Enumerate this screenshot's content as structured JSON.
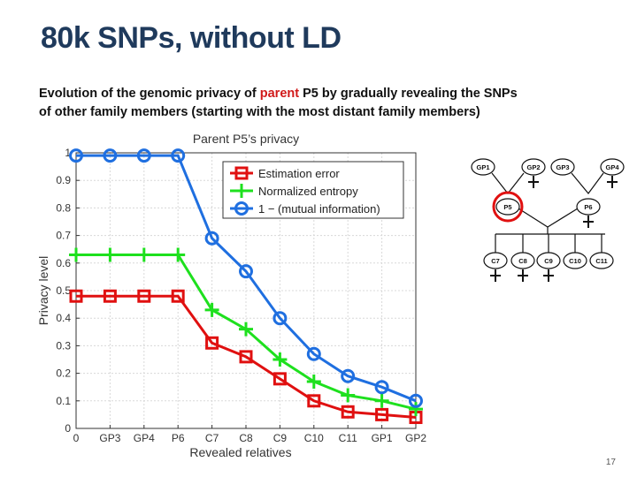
{
  "title": "80k SNPs, without LD",
  "subtitle": {
    "pre": "Evolution of the genomic privacy of ",
    "highlight": "parent",
    "post_line1": " P5 by gradually revealing the SNPs",
    "line2": "of other family members (starting with the most distant family members)"
  },
  "colors": {
    "title": "#1f3a5c",
    "highlight": "#d11a1a",
    "estimation": "#e01010",
    "entropy": "#1ee01e",
    "mutual": "#1f6fe0"
  },
  "chart_data": {
    "type": "line",
    "title": "Parent P5’s privacy",
    "xlabel": "Revealed relatives",
    "ylabel": "Privacy level",
    "categories": [
      "0",
      "GP3",
      "GP4",
      "P6",
      "C7",
      "C8",
      "C9",
      "C10",
      "C11",
      "GP1",
      "GP2"
    ],
    "ylim": [
      0,
      1
    ],
    "yticks": [
      "0",
      "0.1",
      "0.2",
      "0.3",
      "0.4",
      "0.5",
      "0.6",
      "0.7",
      "0.8",
      "0.9",
      "1"
    ],
    "grid": true,
    "legend_position": "top-right",
    "series": [
      {
        "name": "Estimation error",
        "marker": "square",
        "color": "#e01010",
        "values": [
          0.48,
          0.48,
          0.48,
          0.48,
          0.31,
          0.26,
          0.18,
          0.1,
          0.06,
          0.05,
          0.04
        ]
      },
      {
        "name": "Normalized entropy",
        "marker": "plus",
        "color": "#1ee01e",
        "values": [
          0.63,
          0.63,
          0.63,
          0.63,
          0.43,
          0.36,
          0.25,
          0.17,
          0.12,
          0.1,
          0.07
        ]
      },
      {
        "name": "1 − (mutual information)",
        "marker": "circle",
        "color": "#1f6fe0",
        "values": [
          0.99,
          0.99,
          0.99,
          0.99,
          0.69,
          0.57,
          0.4,
          0.27,
          0.19,
          0.15,
          0.1
        ]
      }
    ]
  },
  "family_tree": {
    "grandparents": [
      "GP1",
      "GP2",
      "GP3",
      "GP4"
    ],
    "parents": [
      "P5",
      "P6"
    ],
    "children": [
      "C7",
      "C8",
      "C9",
      "C10",
      "C11"
    ],
    "target": "P5"
  },
  "page_number": "17"
}
